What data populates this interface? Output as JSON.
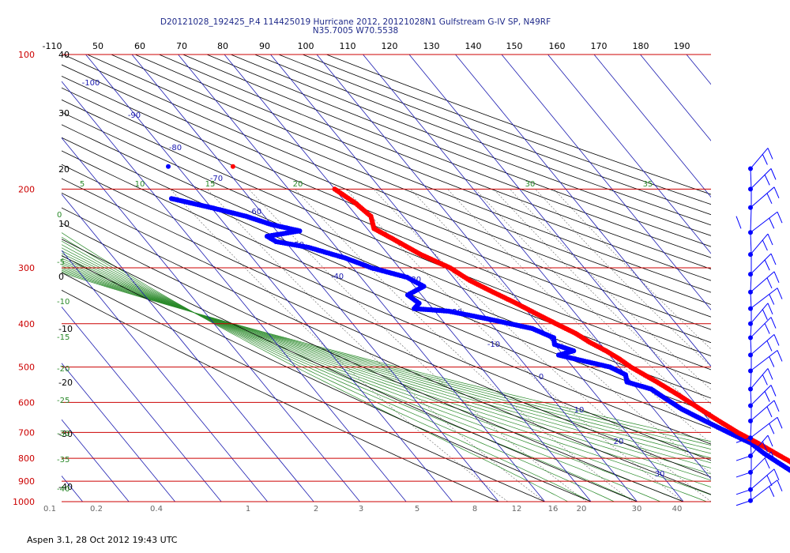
{
  "chart_data": {
    "type": "skew-t",
    "title_line1": "D20121028_192425_P.4 114425019 Hurricane 2012, 20121028N1 Gulfstream G-IV SP, N49RF",
    "title_line2": "N35.7005 W70.5538",
    "footer": "Aspen 3.1, 28 Oct 2012  19:43 UTC",
    "pressure_ticks": [
      "100",
      "200",
      "300",
      "400",
      "500",
      "600",
      "700",
      "800",
      "900",
      "1000"
    ],
    "pressure_values": [
      100,
      200,
      300,
      400,
      500,
      600,
      700,
      800,
      900,
      1000
    ],
    "top_temp_ticks": [
      "-110",
      "50",
      "60",
      "70",
      "80",
      "90",
      "100",
      "110",
      "120",
      "130",
      "140",
      "150",
      "160",
      "170",
      "180",
      "190"
    ],
    "left_temp_ticks": [
      "40",
      "30",
      "20",
      "10",
      "0",
      "-10",
      "-20",
      "-30",
      "-40"
    ],
    "isotherm_labels": [
      "-100",
      "-90",
      "-80",
      "-70",
      "-60",
      "-50",
      "-40",
      "-30",
      "-20",
      "-10",
      "0",
      "10",
      "20",
      "30"
    ],
    "dry_adiabat_labels": [
      "-5",
      "0",
      "-5",
      "-10",
      "-15",
      "-20",
      "-25",
      "-30",
      "-35",
      "-40"
    ],
    "moist_labels": [
      "5",
      "10",
      "15",
      "20",
      "30",
      "35"
    ],
    "mixing_ratio_labels": [
      "0.1",
      "0.2",
      "0.4",
      "1",
      "2",
      "3",
      "5",
      "8",
      "12",
      "16",
      "20",
      "30",
      "40"
    ],
    "temperature_profile": {
      "name": "Temperature",
      "color": "#ff0000",
      "points": [
        [
          200,
          -40
        ],
        [
          215,
          -38
        ],
        [
          230,
          -37
        ],
        [
          245,
          -38.5
        ],
        [
          260,
          -36
        ],
        [
          280,
          -33
        ],
        [
          300,
          -29
        ],
        [
          320,
          -27
        ],
        [
          340,
          -24
        ],
        [
          360,
          -21
        ],
        [
          380,
          -18.5
        ],
        [
          400,
          -16
        ],
        [
          420,
          -13.5
        ],
        [
          440,
          -12
        ],
        [
          460,
          -10
        ],
        [
          480,
          -8.5
        ],
        [
          500,
          -7.5
        ],
        [
          540,
          -4.5
        ],
        [
          580,
          -2
        ],
        [
          620,
          0
        ],
        [
          660,
          2
        ],
        [
          700,
          4
        ],
        [
          740,
          6.5
        ],
        [
          780,
          8.5
        ],
        [
          820,
          10.5
        ],
        [
          860,
          12.5
        ],
        [
          900,
          14.5
        ],
        [
          940,
          17
        ],
        [
          980,
          19
        ],
        [
          995,
          20
        ]
      ]
    },
    "dewpoint_profile": {
      "name": "Dew point",
      "color": "#0000ff",
      "points": [
        [
          210,
          -77
        ],
        [
          220,
          -70
        ],
        [
          230,
          -64
        ],
        [
          240,
          -60
        ],
        [
          248,
          -55
        ],
        [
          255,
          -63
        ],
        [
          262,
          -62
        ],
        [
          270,
          -56
        ],
        [
          285,
          -50
        ],
        [
          300,
          -46
        ],
        [
          315,
          -40
        ],
        [
          330,
          -38
        ],
        [
          345,
          -43
        ],
        [
          360,
          -42
        ],
        [
          370,
          -44
        ],
        [
          375,
          -37
        ],
        [
          390,
          -30
        ],
        [
          410,
          -22
        ],
        [
          430,
          -19
        ],
        [
          445,
          -20
        ],
        [
          460,
          -17
        ],
        [
          470,
          -21
        ],
        [
          480,
          -18
        ],
        [
          500,
          -12
        ],
        [
          520,
          -10
        ],
        [
          540,
          -11
        ],
        [
          560,
          -7
        ],
        [
          580,
          -6
        ],
        [
          620,
          -4
        ],
        [
          660,
          -1
        ],
        [
          700,
          2
        ],
        [
          740,
          5
        ],
        [
          780,
          6
        ],
        [
          820,
          7.5
        ],
        [
          860,
          9
        ],
        [
          900,
          10.5
        ],
        [
          940,
          12
        ],
        [
          990,
          14
        ]
      ]
    },
    "upper_points": [
      {
        "name": "dew point marker",
        "color": "#0000ff",
        "p": 178,
        "t": -72
      },
      {
        "name": "temperature marker",
        "color": "#ff0000",
        "p": 178,
        "t": -58
      }
    ],
    "wind_barbs_p": [
      180,
      200,
      220,
      250,
      280,
      310,
      340,
      370,
      400,
      430,
      470,
      510,
      560,
      610,
      660,
      720,
      790,
      860,
      940,
      995
    ],
    "colors": {
      "isobar": "#cc0000",
      "isotherm": "#1a1ab0",
      "dry_adiabat": "#000000",
      "moist_adiabat": "#2a8a2a",
      "mixing_ratio": "#666666",
      "temperature": "#ff0000",
      "dewpoint": "#0000ff",
      "title": "#1f2a8a"
    }
  }
}
